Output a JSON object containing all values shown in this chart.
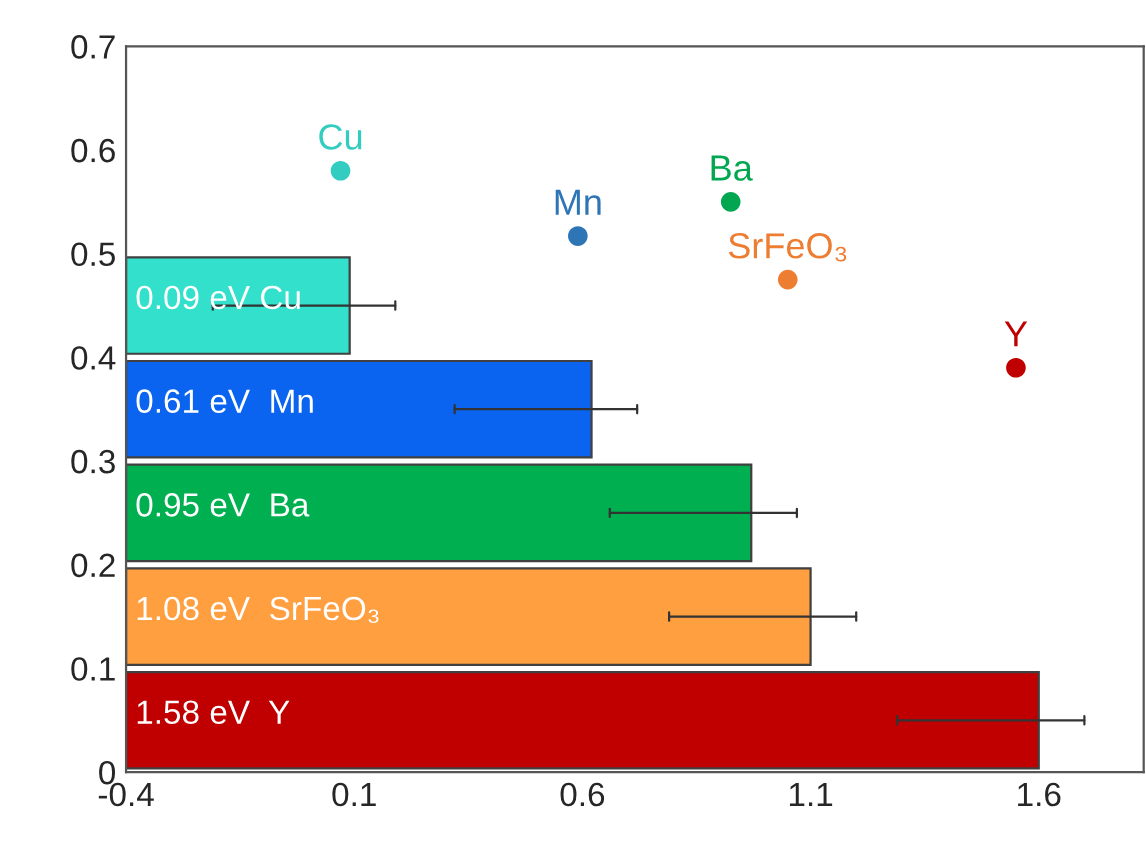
{
  "chart_data": {
    "type": "bar",
    "orientation": "horizontal",
    "xlim": [
      -0.4,
      1.83
    ],
    "xticks": [
      -0.4,
      0.1,
      0.6,
      1.1,
      1.6
    ],
    "ylim": [
      0,
      0.7
    ],
    "yticks": [
      0,
      0.1,
      0.2,
      0.3,
      0.4,
      0.5,
      0.6,
      0.7
    ],
    "annotations": [
      "0.09 eV Cu",
      "0.61 eV  Mn",
      "0.95 eV  Ba",
      "1.08 eV  SrFeO₃",
      "1.58 eV  Y"
    ],
    "series": [
      {
        "x": [
          0.45,
          0.35,
          0.25,
          0.15,
          0.05
        ],
        "base": [
          -0.4,
          -0.4,
          -0.4,
          -0.4,
          -0.4
        ],
        "values": [
          0.49,
          1.02,
          1.37,
          1.5,
          2.0
        ],
        "colors": [
          "#33e0cc",
          "#0a64f0",
          "#00b050",
          "#ff9f40",
          "#c00000"
        ],
        "errors": [
          [
            -0.21,
            0.19
          ],
          [
            0.32,
            0.72
          ],
          [
            0.66,
            1.07
          ],
          [
            0.79,
            1.2
          ],
          [
            1.29,
            1.7
          ]
        ]
      },
      {
        "type": "scatter",
        "name": "Cu",
        "color": "#33ccc0",
        "x": [
          0.58
        ],
        "values": [
          0.07
        ],
        "marker": "circle"
      },
      {
        "type": "scatter",
        "name": "Mn",
        "color": "#2e75b6",
        "x": [
          0.517
        ],
        "values": [
          0.59
        ],
        "marker": "circle"
      },
      {
        "type": "scatter",
        "name": "Ba",
        "color": "#00a650",
        "x": [
          0.55
        ],
        "values": [
          0.925
        ],
        "marker": "circle"
      },
      {
        "type": "scatter",
        "name": "SrFeO₃",
        "color": "#ed7d31",
        "x": [
          0.475
        ],
        "values": [
          1.05
        ],
        "marker": "circle"
      },
      {
        "type": "scatter",
        "name": "Y",
        "color": "#c00000",
        "x": [
          0.39
        ],
        "values": [
          1.55
        ],
        "marker": "circle"
      }
    ]
  }
}
